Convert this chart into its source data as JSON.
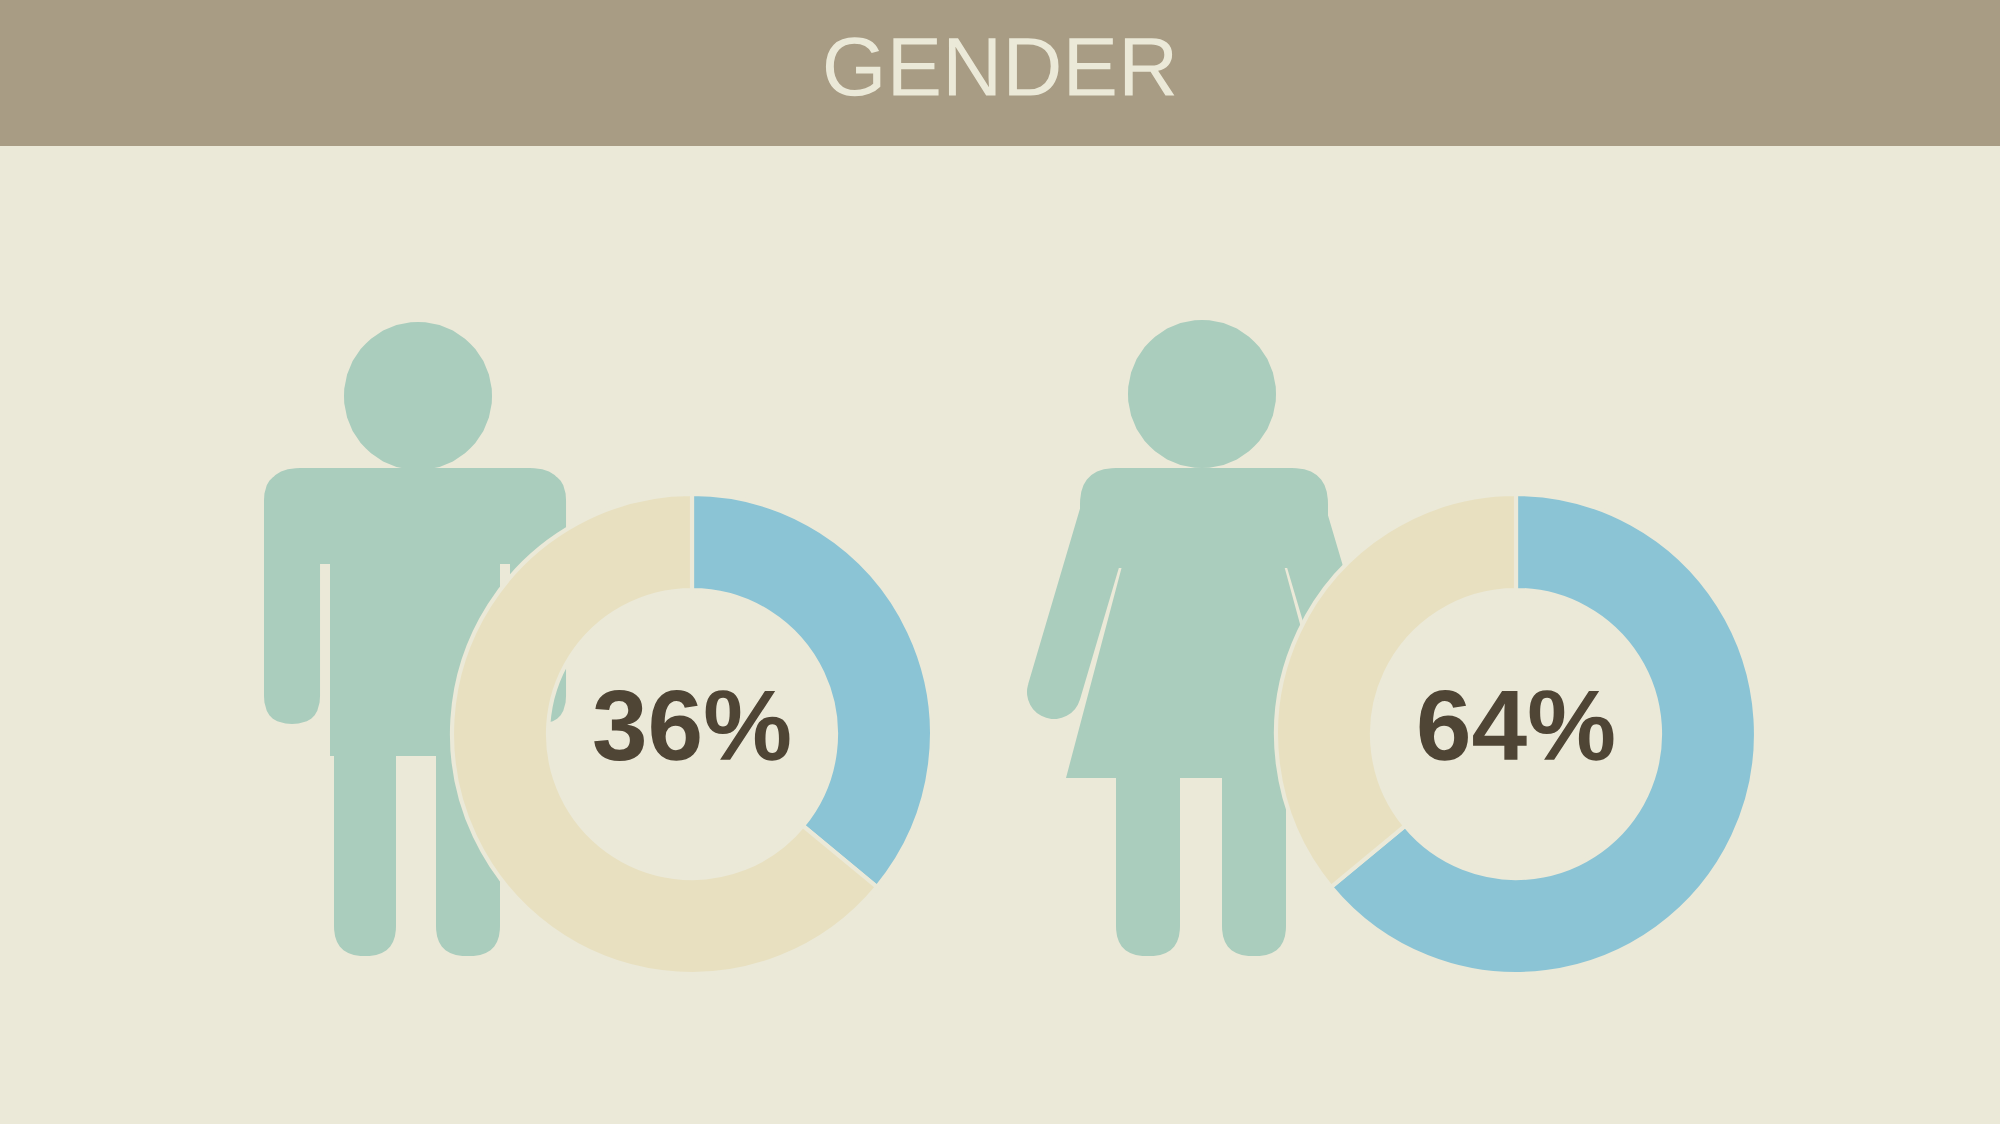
{
  "chart_data": [
    {
      "type": "donut",
      "title": "GENDER",
      "categories": [
        null,
        null
      ],
      "values": [
        36,
        64
      ],
      "colors": [
        "#8bc4d5",
        "#e8e0c0"
      ],
      "value_labels": [
        "36%",
        null
      ]
    },
    {
      "type": "donut",
      "categories": [
        null,
        null
      ],
      "values": [
        64,
        36
      ],
      "colors": [
        "#8bc4d5",
        "#e8e0c0"
      ],
      "value_labels": [
        "64%",
        null
      ]
    }
  ]
}
